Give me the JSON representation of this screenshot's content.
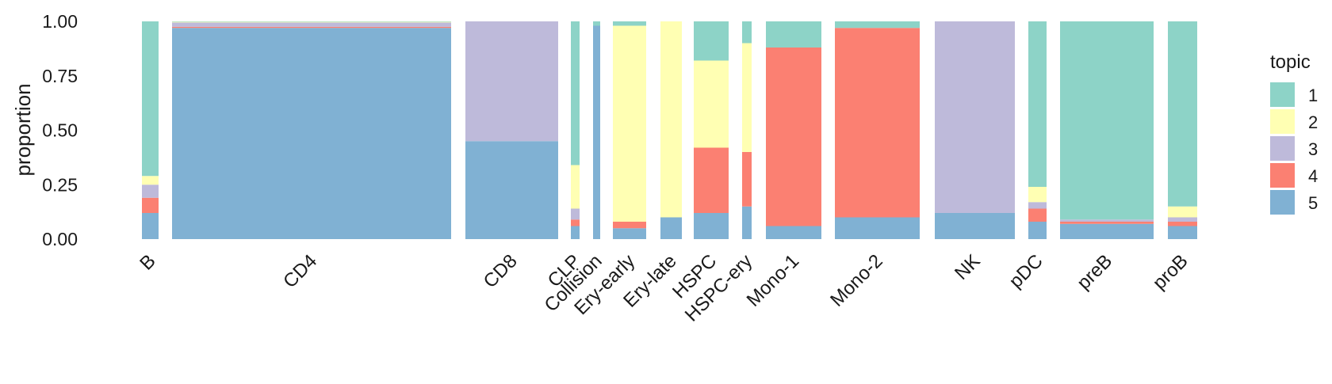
{
  "chart_data": {
    "type": "bar",
    "subtype": "stacked-structure-plot",
    "ylabel": "proportion",
    "xlabel": "",
    "ylim": [
      0,
      1
    ],
    "yticks": [
      "0.00",
      "0.25",
      "0.50",
      "0.75",
      "1.00"
    ],
    "grid": false,
    "legend": {
      "title": "topic",
      "placement": "right",
      "entries": [
        {
          "label": "1",
          "color": "#8dd3c7"
        },
        {
          "label": "2",
          "color": "#ffffb3"
        },
        {
          "label": "3",
          "color": "#bebada"
        },
        {
          "label": "4",
          "color": "#fb8072"
        },
        {
          "label": "5",
          "color": "#80b1d3"
        }
      ]
    },
    "groups": [
      {
        "label": "B",
        "topic_means": {
          "5": 0.12,
          "4": 0.07,
          "3": 0.06,
          "2": 0.04,
          "1": 0.71
        }
      },
      {
        "label": "CD4",
        "topic_means": {
          "5": 0.97,
          "4": 0.005,
          "3": 0.02,
          "2": 0.003,
          "1": 0.002
        }
      },
      {
        "label": "CD8",
        "topic_means": {
          "5": 0.45,
          "4": 0.0,
          "3": 0.55,
          "2": 0.0,
          "1": 0.0
        }
      },
      {
        "label": "CLP",
        "topic_means": {
          "5": 0.06,
          "4": 0.03,
          "3": 0.05,
          "2": 0.2,
          "1": 0.66
        }
      },
      {
        "label": "Collision",
        "topic_means": {
          "5": 0.98,
          "4": 0.0,
          "3": 0.0,
          "2": 0.0,
          "1": 0.02
        }
      },
      {
        "label": "Ery-early",
        "topic_means": {
          "5": 0.05,
          "4": 0.03,
          "3": 0.0,
          "2": 0.9,
          "1": 0.02
        }
      },
      {
        "label": "Ery-late",
        "topic_means": {
          "5": 0.1,
          "4": 0.0,
          "3": 0.0,
          "2": 0.9,
          "1": 0.0
        }
      },
      {
        "label": "HSPC",
        "topic_means": {
          "5": 0.12,
          "4": 0.3,
          "3": 0.0,
          "2": 0.4,
          "1": 0.18
        }
      },
      {
        "label": "HSPC-ery",
        "topic_means": {
          "5": 0.15,
          "4": 0.25,
          "3": 0.0,
          "2": 0.5,
          "1": 0.1
        }
      },
      {
        "label": "Mono-1",
        "topic_means": {
          "5": 0.06,
          "4": 0.82,
          "3": 0.0,
          "2": 0.0,
          "1": 0.12
        }
      },
      {
        "label": "Mono-2",
        "topic_means": {
          "5": 0.1,
          "4": 0.87,
          "3": 0.0,
          "2": 0.0,
          "1": 0.03
        }
      },
      {
        "label": "NK",
        "topic_means": {
          "5": 0.12,
          "4": 0.0,
          "3": 0.88,
          "2": 0.0,
          "1": 0.0
        }
      },
      {
        "label": "pDC",
        "topic_means": {
          "5": 0.08,
          "4": 0.06,
          "3": 0.03,
          "2": 0.07,
          "1": 0.76
        }
      },
      {
        "label": "preB",
        "topic_means": {
          "5": 0.07,
          "4": 0.01,
          "3": 0.01,
          "2": 0.0,
          "1": 0.91
        }
      },
      {
        "label": "proB",
        "topic_means": {
          "5": 0.06,
          "4": 0.02,
          "3": 0.02,
          "2": 0.05,
          "1": 0.85
        }
      }
    ]
  }
}
